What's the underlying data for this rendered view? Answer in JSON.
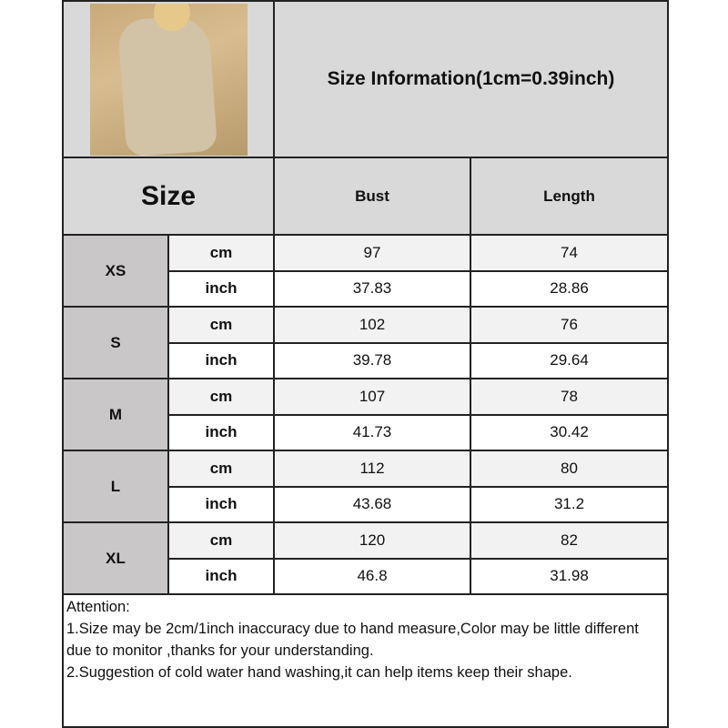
{
  "header": {
    "title": "Size Information(1cm=0.39inch)"
  },
  "columns": {
    "size": "Size",
    "bust": "Bust",
    "length": "Length"
  },
  "rows": [
    {
      "size": "XS",
      "cm": {
        "unit": "cm",
        "bust": "97",
        "length": "74"
      },
      "inch": {
        "unit": "inch",
        "bust": "37.83",
        "length": "28.86"
      }
    },
    {
      "size": "S",
      "cm": {
        "unit": "cm",
        "bust": "102",
        "length": "76"
      },
      "inch": {
        "unit": "inch",
        "bust": "39.78",
        "length": "29.64"
      }
    },
    {
      "size": "M",
      "cm": {
        "unit": "cm",
        "bust": "107",
        "length": "78"
      },
      "inch": {
        "unit": "inch",
        "bust": "41.73",
        "length": "30.42"
      }
    },
    {
      "size": "L",
      "cm": {
        "unit": "cm",
        "bust": "112",
        "length": "80"
      },
      "inch": {
        "unit": "inch",
        "bust": "43.68",
        "length": "31.2"
      }
    },
    {
      "size": "XL",
      "cm": {
        "unit": "cm",
        "bust": "120",
        "length": "82"
      },
      "inch": {
        "unit": "inch",
        "bust": "46.8",
        "length": "31.98"
      }
    }
  ],
  "attention": {
    "heading": "Attention:",
    "line1": "1.Size may be 2cm/1inch inaccuracy due to hand measure,Color may be little different due to monitor ,thanks for your understanding.",
    "line2": "2.Suggestion of cold water hand washing,it can help items keep their shape."
  },
  "colors": {
    "header_bg": "#d9d9d9",
    "size_bg": "#c9c7c7",
    "cm_row_bg": "#f2f2f2",
    "inch_row_bg": "#ffffff"
  }
}
